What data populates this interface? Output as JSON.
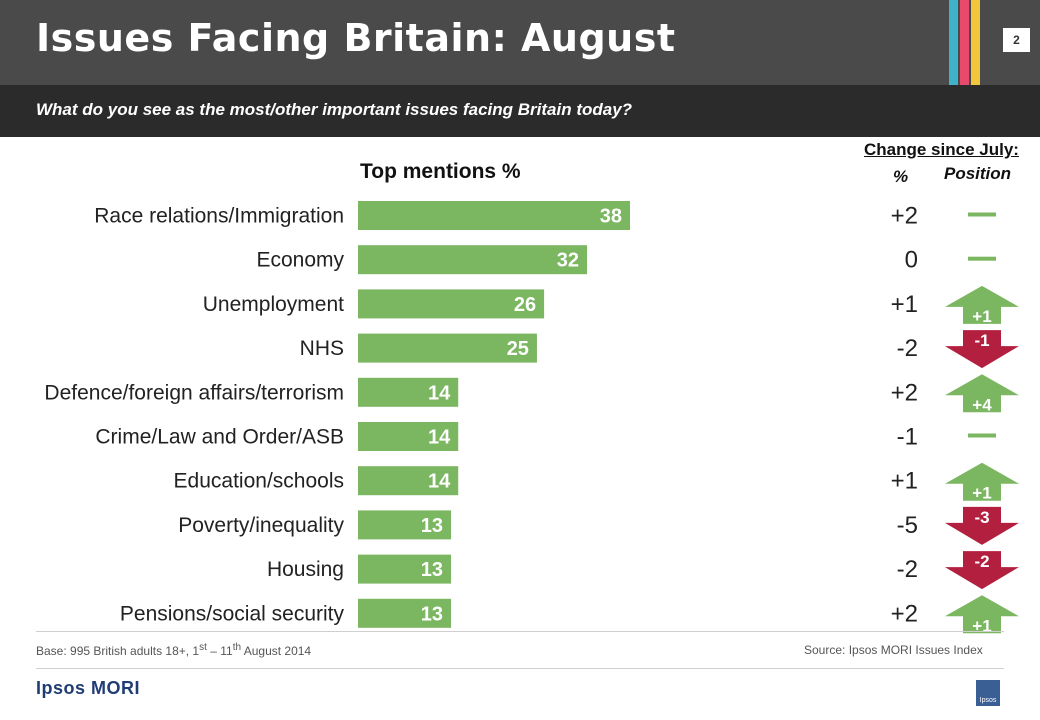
{
  "header": {
    "title": "Issues Facing Britain: August",
    "page_number": "2",
    "stripe_colors": [
      "#3fb1c9",
      "#e84a6c",
      "#f2c63a"
    ]
  },
  "question": "What do you see as the most/other important issues facing Britain today?",
  "columns": {
    "change_header": "Change since July:",
    "pct_header": "%",
    "position_header": "Position"
  },
  "colors": {
    "bar": "#7bb661",
    "up": "#7bb661",
    "down": "#b21f3f",
    "dash": "#7bb661"
  },
  "chart_data": {
    "type": "bar",
    "orientation": "horizontal",
    "title": "Top mentions %",
    "categories": [
      "Race relations/Immigration",
      "Economy",
      "Unemployment",
      "NHS",
      "Defence/foreign affairs/terrorism",
      "Crime/Law and Order/ASB",
      "Education/schools",
      "Poverty/inequality",
      "Housing",
      "Pensions/social security"
    ],
    "values": [
      38,
      32,
      26,
      25,
      14,
      14,
      14,
      13,
      13,
      13
    ],
    "change_pct": [
      "+2",
      "0",
      "+1",
      "-2",
      "+2",
      "-1",
      "+1",
      "-5",
      "-2",
      "+2"
    ],
    "position_change": [
      {
        "dir": "same",
        "label": ""
      },
      {
        "dir": "same",
        "label": ""
      },
      {
        "dir": "up",
        "label": "+1"
      },
      {
        "dir": "down",
        "label": "-1"
      },
      {
        "dir": "up",
        "label": "+4"
      },
      {
        "dir": "same",
        "label": ""
      },
      {
        "dir": "up",
        "label": "+1"
      },
      {
        "dir": "down",
        "label": "-3"
      },
      {
        "dir": "down",
        "label": "-2"
      },
      {
        "dir": "up",
        "label": "+1"
      }
    ],
    "xlim": [
      0,
      38
    ],
    "grid": false,
    "legend": "none"
  },
  "footer": {
    "base_prefix": "Base: 995 British adults 18+, 1",
    "base_sup1": "st",
    "base_mid": " – 11",
    "base_sup2": "th",
    "base_suffix": " August 2014",
    "source": "Source: Ipsos MORI  Issues Index",
    "logo": "Ipsos MORI",
    "logo_small": "Ipsos"
  }
}
